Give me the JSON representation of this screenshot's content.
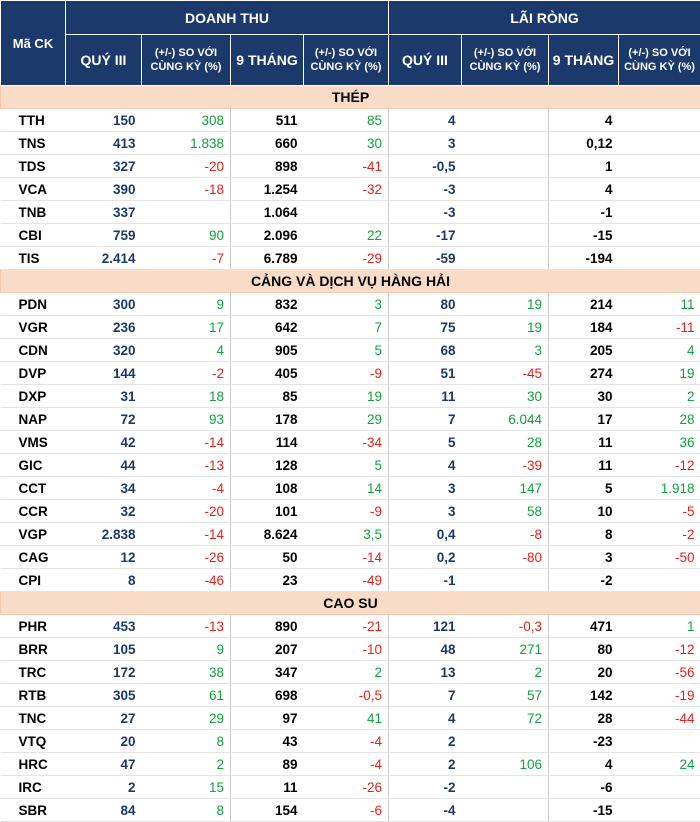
{
  "header": {
    "ma_ck": "Mã CK",
    "group_revenue": "DOANH THU",
    "group_profit": "LÃI RÒNG",
    "q3": "QUÝ III",
    "chg": "(+/-) SO VỚI CÙNG KỲ (%)",
    "nine_months": "9 THÁNG"
  },
  "sections": [
    {
      "title": "THÉP",
      "rows": [
        {
          "code": "TTH",
          "rev_q3": "150",
          "rev_q3_chg": "308",
          "rev_9m": "511",
          "rev_9m_chg": "85",
          "np_q3": "4",
          "np_q3_chg": "",
          "np_9m": "4",
          "np_9m_chg": ""
        },
        {
          "code": "TNS",
          "rev_q3": "413",
          "rev_q3_chg": "1.838",
          "rev_9m": "660",
          "rev_9m_chg": "30",
          "np_q3": "3",
          "np_q3_chg": "",
          "np_9m": "0,12",
          "np_9m_chg": ""
        },
        {
          "code": "TDS",
          "rev_q3": "327",
          "rev_q3_chg": "-20",
          "rev_9m": "898",
          "rev_9m_chg": "-41",
          "np_q3": "-0,5",
          "np_q3_chg": "",
          "np_9m": "1",
          "np_9m_chg": ""
        },
        {
          "code": "VCA",
          "rev_q3": "390",
          "rev_q3_chg": "-18",
          "rev_9m": "1.254",
          "rev_9m_chg": "-32",
          "np_q3": "-3",
          "np_q3_chg": "",
          "np_9m": "4",
          "np_9m_chg": ""
        },
        {
          "code": "TNB",
          "rev_q3": "337",
          "rev_q3_chg": "",
          "rev_9m": "1.064",
          "rev_9m_chg": "",
          "np_q3": "-3",
          "np_q3_chg": "",
          "np_9m": "-1",
          "np_9m_chg": ""
        },
        {
          "code": "CBI",
          "rev_q3": "759",
          "rev_q3_chg": "90",
          "rev_9m": "2.096",
          "rev_9m_chg": "22",
          "np_q3": "-17",
          "np_q3_chg": "",
          "np_9m": "-15",
          "np_9m_chg": ""
        },
        {
          "code": "TIS",
          "rev_q3": "2.414",
          "rev_q3_chg": "-7",
          "rev_9m": "6.789",
          "rev_9m_chg": "-29",
          "np_q3": "-59",
          "np_q3_chg": "",
          "np_9m": "-194",
          "np_9m_chg": ""
        }
      ]
    },
    {
      "title": "CẢNG VÀ DỊCH VỤ HÀNG HẢI",
      "rows": [
        {
          "code": "PDN",
          "rev_q3": "300",
          "rev_q3_chg": "9",
          "rev_9m": "832",
          "rev_9m_chg": "3",
          "np_q3": "80",
          "np_q3_chg": "19",
          "np_9m": "214",
          "np_9m_chg": "11"
        },
        {
          "code": "VGR",
          "rev_q3": "236",
          "rev_q3_chg": "17",
          "rev_9m": "642",
          "rev_9m_chg": "7",
          "np_q3": "75",
          "np_q3_chg": "19",
          "np_9m": "184",
          "np_9m_chg": "-11"
        },
        {
          "code": "CDN",
          "rev_q3": "320",
          "rev_q3_chg": "4",
          "rev_9m": "905",
          "rev_9m_chg": "5",
          "np_q3": "68",
          "np_q3_chg": "3",
          "np_9m": "205",
          "np_9m_chg": "4"
        },
        {
          "code": "DVP",
          "rev_q3": "144",
          "rev_q3_chg": "-2",
          "rev_9m": "405",
          "rev_9m_chg": "-9",
          "np_q3": "51",
          "np_q3_chg": "-45",
          "np_9m": "274",
          "np_9m_chg": "19"
        },
        {
          "code": "DXP",
          "rev_q3": "31",
          "rev_q3_chg": "18",
          "rev_9m": "85",
          "rev_9m_chg": "19",
          "np_q3": "11",
          "np_q3_chg": "30",
          "np_9m": "30",
          "np_9m_chg": "2"
        },
        {
          "code": "NAP",
          "rev_q3": "72",
          "rev_q3_chg": "93",
          "rev_9m": "178",
          "rev_9m_chg": "29",
          "np_q3": "7",
          "np_q3_chg": "6.044",
          "np_9m": "17",
          "np_9m_chg": "28"
        },
        {
          "code": "VMS",
          "rev_q3": "42",
          "rev_q3_chg": "-14",
          "rev_9m": "114",
          "rev_9m_chg": "-34",
          "np_q3": "5",
          "np_q3_chg": "28",
          "np_9m": "11",
          "np_9m_chg": "36"
        },
        {
          "code": "GIC",
          "rev_q3": "44",
          "rev_q3_chg": "-13",
          "rev_9m": "128",
          "rev_9m_chg": "5",
          "np_q3": "4",
          "np_q3_chg": "-39",
          "np_9m": "11",
          "np_9m_chg": "-12"
        },
        {
          "code": "CCT",
          "rev_q3": "34",
          "rev_q3_chg": "-4",
          "rev_9m": "108",
          "rev_9m_chg": "14",
          "np_q3": "3",
          "np_q3_chg": "147",
          "np_9m": "5",
          "np_9m_chg": "1.918"
        },
        {
          "code": "CCR",
          "rev_q3": "32",
          "rev_q3_chg": "-20",
          "rev_9m": "101",
          "rev_9m_chg": "-9",
          "np_q3": "3",
          "np_q3_chg": "58",
          "np_9m": "10",
          "np_9m_chg": "-5"
        },
        {
          "code": "VGP",
          "rev_q3": "2.838",
          "rev_q3_chg": "-14",
          "rev_9m": "8.624",
          "rev_9m_chg": "3,5",
          "np_q3": "0,4",
          "np_q3_chg": "-8",
          "np_9m": "8",
          "np_9m_chg": "-2"
        },
        {
          "code": "CAG",
          "rev_q3": "12",
          "rev_q3_chg": "-26",
          "rev_9m": "50",
          "rev_9m_chg": "-14",
          "np_q3": "0,2",
          "np_q3_chg": "-80",
          "np_9m": "3",
          "np_9m_chg": "-50"
        },
        {
          "code": "CPI",
          "rev_q3": "8",
          "rev_q3_chg": "-46",
          "rev_9m": "23",
          "rev_9m_chg": "-49",
          "np_q3": "-1",
          "np_q3_chg": "",
          "np_9m": "-2",
          "np_9m_chg": ""
        }
      ]
    },
    {
      "title": "CAO SU",
      "rows": [
        {
          "code": "PHR",
          "rev_q3": "453",
          "rev_q3_chg": "-13",
          "rev_9m": "890",
          "rev_9m_chg": "-21",
          "np_q3": "121",
          "np_q3_chg": "-0,3",
          "np_9m": "471",
          "np_9m_chg": "1"
        },
        {
          "code": "BRR",
          "rev_q3": "105",
          "rev_q3_chg": "9",
          "rev_9m": "207",
          "rev_9m_chg": "-10",
          "np_q3": "48",
          "np_q3_chg": "271",
          "np_9m": "80",
          "np_9m_chg": "-12"
        },
        {
          "code": "TRC",
          "rev_q3": "172",
          "rev_q3_chg": "38",
          "rev_9m": "347",
          "rev_9m_chg": "2",
          "np_q3": "13",
          "np_q3_chg": "2",
          "np_9m": "20",
          "np_9m_chg": "-56"
        },
        {
          "code": "RTB",
          "rev_q3": "305",
          "rev_q3_chg": "61",
          "rev_9m": "698",
          "rev_9m_chg": "-0,5",
          "np_q3": "7",
          "np_q3_chg": "57",
          "np_9m": "142",
          "np_9m_chg": "-19"
        },
        {
          "code": "TNC",
          "rev_q3": "27",
          "rev_q3_chg": "29",
          "rev_9m": "97",
          "rev_9m_chg": "41",
          "np_q3": "4",
          "np_q3_chg": "72",
          "np_9m": "28",
          "np_9m_chg": "-44"
        },
        {
          "code": "VTQ",
          "rev_q3": "20",
          "rev_q3_chg": "8",
          "rev_9m": "43",
          "rev_9m_chg": "-4",
          "np_q3": "2",
          "np_q3_chg": "",
          "np_9m": "-23",
          "np_9m_chg": ""
        },
        {
          "code": "HRC",
          "rev_q3": "47",
          "rev_q3_chg": "2",
          "rev_9m": "89",
          "rev_9m_chg": "-4",
          "np_q3": "2",
          "np_q3_chg": "106",
          "np_9m": "4",
          "np_9m_chg": "24"
        },
        {
          "code": "IRC",
          "rev_q3": "2",
          "rev_q3_chg": "15",
          "rev_9m": "11",
          "rev_9m_chg": "-26",
          "np_q3": "-2",
          "np_q3_chg": "",
          "np_9m": "-6",
          "np_9m_chg": ""
        },
        {
          "code": "SBR",
          "rev_q3": "84",
          "rev_q3_chg": "8",
          "rev_9m": "154",
          "rev_9m_chg": "-6",
          "np_q3": "-4",
          "np_q3_chg": "",
          "np_9m": "-15",
          "np_9m_chg": ""
        }
      ]
    }
  ]
}
